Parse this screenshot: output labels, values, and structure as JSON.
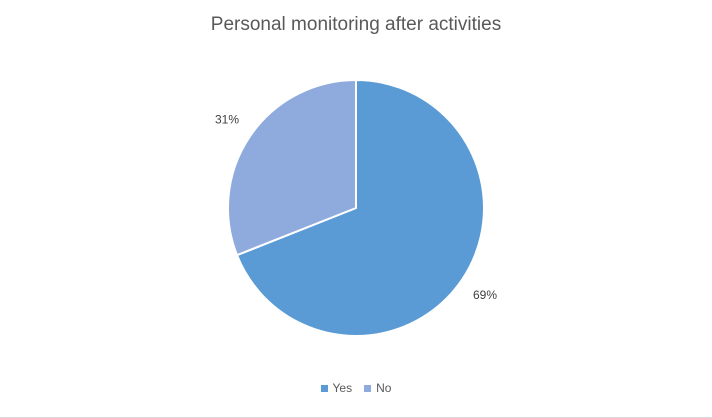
{
  "chart_data": {
    "type": "pie",
    "title": "Personal monitoring after activities",
    "categories": [
      "Yes",
      "No"
    ],
    "values": [
      69,
      31
    ],
    "labels": [
      "69%",
      "31%"
    ],
    "colors": [
      "#5b9bd5",
      "#8faadc"
    ],
    "legend_position": "bottom"
  }
}
